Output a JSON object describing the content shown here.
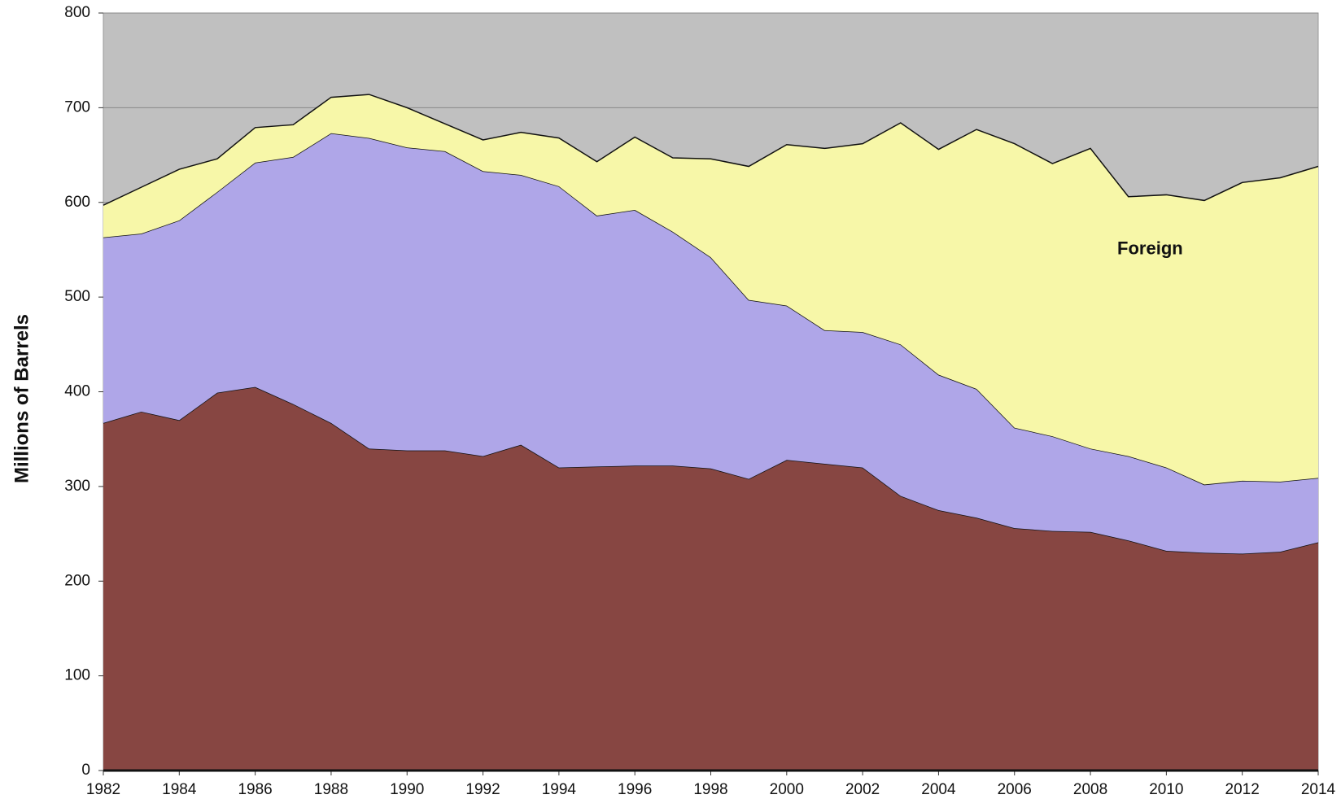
{
  "chart_data": {
    "type": "stacked_area",
    "y_label": "Millions of Barrels",
    "x": [
      1982,
      1983,
      1984,
      1985,
      1986,
      1987,
      1988,
      1989,
      1990,
      1991,
      1992,
      1993,
      1994,
      1995,
      1996,
      1997,
      1998,
      1999,
      2000,
      2001,
      2002,
      2003,
      2004,
      2005,
      2006,
      2007,
      2008,
      2009,
      2010,
      2011,
      2012,
      2013,
      2014
    ],
    "xlim": [
      1982,
      2014
    ],
    "xticks": [
      1982,
      1984,
      1986,
      1988,
      1990,
      1992,
      1994,
      1996,
      1998,
      2000,
      2002,
      2004,
      2006,
      2008,
      2010,
      2012,
      2014
    ],
    "ylim": [
      0,
      800
    ],
    "yticks": [
      0,
      100,
      200,
      300,
      400,
      500,
      600,
      700,
      800
    ],
    "grid": true,
    "background": "#c0c0c0",
    "series": [
      {
        "color": "#874642",
        "values": [
          367,
          379,
          370,
          399,
          405,
          387,
          367,
          340,
          338,
          338,
          332,
          344,
          320,
          321,
          322,
          322,
          319,
          308,
          328,
          324,
          320,
          290,
          275,
          267,
          256,
          253,
          252,
          243,
          232,
          230,
          229,
          231,
          241
        ]
      },
      {
        "color": "#afa6e8",
        "values": [
          196,
          188,
          211,
          212,
          237,
          261,
          306,
          328,
          320,
          316,
          301,
          285,
          297,
          265,
          270,
          247,
          223,
          189,
          163,
          141,
          143,
          160,
          143,
          136,
          106,
          100,
          88,
          89,
          88,
          72,
          77,
          74,
          68
        ]
      },
      {
        "name": "Foreign",
        "color": "#f7f7a8",
        "values": [
          34,
          49,
          54,
          35,
          37,
          34,
          38,
          46,
          42,
          29,
          33,
          45,
          51,
          57,
          77,
          78,
          104,
          141,
          170,
          192,
          199,
          234,
          238,
          274,
          300,
          288,
          317,
          274,
          288,
          300,
          315,
          321,
          329
        ]
      }
    ]
  }
}
